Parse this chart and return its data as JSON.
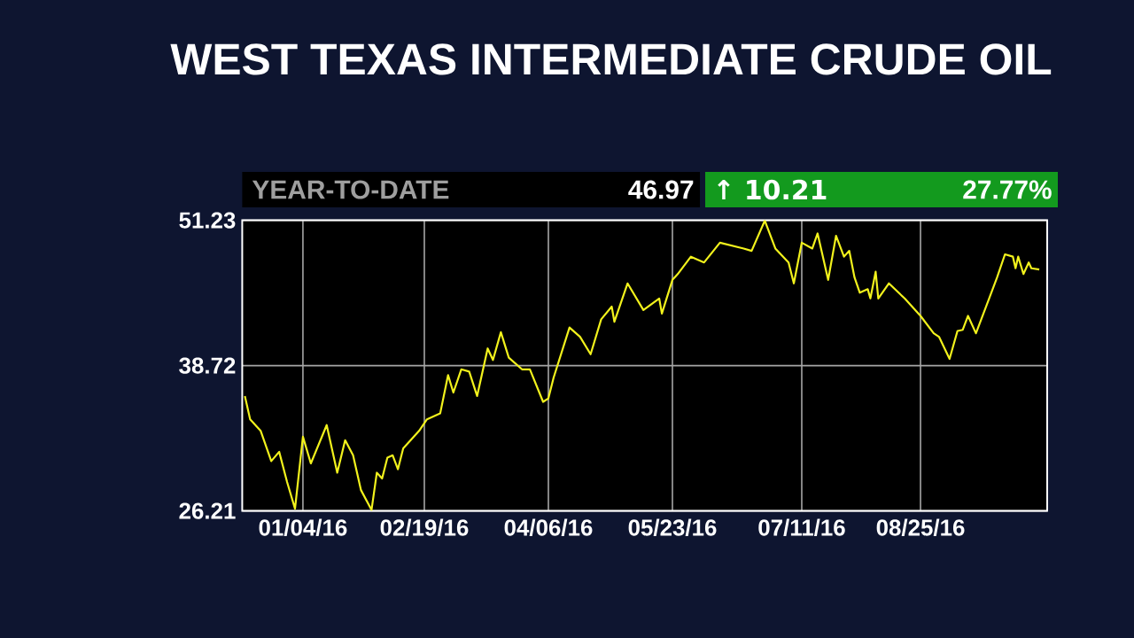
{
  "chart_data": {
    "type": "line",
    "title": "WEST TEXAS INTERMEDIATE CRUDE OIL",
    "annotations": [
      "YEAR-TO-DATE",
      "46.97",
      "↑ 10.21",
      "27.77%"
    ],
    "color": "#f2f21c",
    "x": [
      "2015-12-13",
      "2015-12-15",
      "2015-12-19",
      "2015-12-23",
      "2015-12-26",
      "2015-12-29",
      "2016-01-01",
      "2016-01-04",
      "2016-01-07",
      "2016-01-13",
      "2016-01-17",
      "2016-01-20",
      "2016-01-23",
      "2016-01-26",
      "2016-01-30",
      "2016-02-01",
      "2016-02-03",
      "2016-02-05",
      "2016-02-07",
      "2016-02-09",
      "2016-02-11",
      "2016-02-17",
      "2016-02-20",
      "2016-02-25",
      "2016-02-28",
      "2016-03-01",
      "2016-03-04",
      "2016-03-07",
      "2016-03-10",
      "2016-03-14",
      "2016-03-16",
      "2016-03-19",
      "2016-03-22",
      "2016-03-27",
      "2016-03-30",
      "2016-04-04",
      "2016-04-06",
      "2016-04-08",
      "2016-04-14",
      "2016-04-18",
      "2016-04-22",
      "2016-04-26",
      "2016-04-30",
      "2016-05-01",
      "2016-05-06",
      "2016-05-12",
      "2016-05-18",
      "2016-05-19",
      "2016-05-23",
      "2016-05-25",
      "2016-05-30",
      "2016-06-04",
      "2016-06-10",
      "2016-06-19",
      "2016-06-22",
      "2016-06-27",
      "2016-07-01",
      "2016-07-06",
      "2016-07-08",
      "2016-07-11",
      "2016-07-15",
      "2016-07-17",
      "2016-07-21",
      "2016-07-24",
      "2016-07-27",
      "2016-07-29",
      "2016-07-31",
      "2016-08-02",
      "2016-08-05",
      "2016-08-06",
      "2016-08-08",
      "2016-08-09",
      "2016-08-13",
      "2016-08-19",
      "2016-08-25",
      "2016-08-30",
      "2016-09-01",
      "2016-09-05",
      "2016-09-08",
      "2016-09-10",
      "2016-09-12",
      "2016-09-15",
      "2016-09-20",
      "2016-09-23",
      "2016-09-26",
      "2016-09-29",
      "2016-09-30",
      "2016-10-01",
      "2016-10-03",
      "2016-10-05",
      "2016-10-06",
      "2016-10-09"
    ],
    "values": [
      36.1,
      34.1,
      33.1,
      30.5,
      31.3,
      28.7,
      26.4,
      32.6,
      30.3,
      33.6,
      29.5,
      32.3,
      31.0,
      28.0,
      26.3,
      29.5,
      29.0,
      30.8,
      31.0,
      29.8,
      31.6,
      33.1,
      34.1,
      34.6,
      37.9,
      36.4,
      38.4,
      38.2,
      36.1,
      40.2,
      39.2,
      41.6,
      39.4,
      38.4,
      38.4,
      35.6,
      35.9,
      37.7,
      42.0,
      41.2,
      39.7,
      42.7,
      43.8,
      42.5,
      45.8,
      43.5,
      44.5,
      43.2,
      46.1,
      46.6,
      48.1,
      47.6,
      49.3,
      48.8,
      48.6,
      51.2,
      48.8,
      47.6,
      45.8,
      49.3,
      48.8,
      50.1,
      46.1,
      49.9,
      48.1,
      48.6,
      46.3,
      45.0,
      45.3,
      44.5,
      46.8,
      44.5,
      45.8,
      44.5,
      43.0,
      41.5,
      41.2,
      39.3,
      41.7,
      41.8,
      43.0,
      41.5,
      44.5,
      46.3,
      48.3,
      48.1,
      47.1,
      48.1,
      46.6,
      47.6,
      47.1,
      47.0
    ],
    "xlim": [
      "2015-12-12",
      "2016-10-12"
    ],
    "xticks": [
      {
        "value": "2016-01-04",
        "label": "01/04/16"
      },
      {
        "value": "2016-02-19",
        "label": "02/19/16"
      },
      {
        "value": "2016-04-06",
        "label": "04/06/16"
      },
      {
        "value": "2016-05-23",
        "label": "05/23/16"
      },
      {
        "value": "2016-07-11",
        "label": "07/11/16"
      },
      {
        "value": "2016-08-25",
        "label": "08/25/16"
      }
    ],
    "ylim": [
      26.21,
      51.23
    ],
    "yticks": [
      26.21,
      38.72,
      51.23
    ],
    "grid": true
  }
}
